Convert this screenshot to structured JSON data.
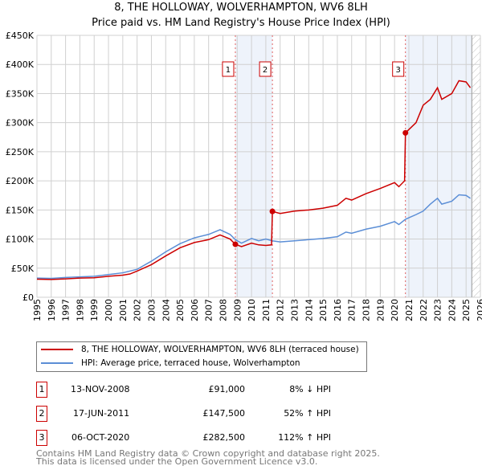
{
  "header": {
    "title": "8, THE HOLLOWAY, WOLVERHAMPTON, WV6 8LH",
    "subtitle": "Price paid vs. HM Land Registry's House Price Index (HPI)"
  },
  "chart_data": {
    "type": "line",
    "title": "8, THE HOLLOWAY, WOLVERHAMPTON, WV6 8LH",
    "subtitle": "Price paid vs. HM Land Registry's House Price Index (HPI)",
    "xlim": [
      1995,
      2026
    ],
    "ylim": [
      0,
      450000
    ],
    "x_ticks": [
      "1995",
      "1996",
      "1997",
      "1998",
      "1999",
      "2000",
      "2001",
      "2002",
      "2003",
      "2004",
      "2005",
      "2006",
      "2007",
      "2008",
      "2009",
      "2010",
      "2011",
      "2012",
      "2013",
      "2014",
      "2015",
      "2016",
      "2017",
      "2018",
      "2019",
      "2020",
      "2021",
      "2022",
      "2023",
      "2024",
      "2025",
      "2026"
    ],
    "y_ticks": [
      {
        "v": 0,
        "label": "£0"
      },
      {
        "v": 50000,
        "label": "£50K"
      },
      {
        "v": 100000,
        "label": "£100K"
      },
      {
        "v": 150000,
        "label": "£150K"
      },
      {
        "v": 200000,
        "label": "£200K"
      },
      {
        "v": 250000,
        "label": "£250K"
      },
      {
        "v": 300000,
        "label": "£300K"
      },
      {
        "v": 350000,
        "label": "£350K"
      },
      {
        "v": 400000,
        "label": "£400K"
      },
      {
        "v": 450000,
        "label": "£450K"
      }
    ],
    "grid": true,
    "shaded_ranges": [
      [
        2008.87,
        2011.46
      ],
      [
        2020.76,
        2025.4
      ]
    ],
    "hatched_from": 2025.4,
    "series": [
      {
        "name": "8, THE HOLLOWAY, WOLVERHAMPTON, WV6 8LH (terraced house)",
        "color": "#cc0000",
        "points": [
          [
            1995,
            31000
          ],
          [
            1996,
            30500
          ],
          [
            1997,
            31500
          ],
          [
            1998,
            33000
          ],
          [
            1999,
            33500
          ],
          [
            2000,
            36000
          ],
          [
            2001,
            38000
          ],
          [
            2001.5,
            40000
          ],
          [
            2002,
            45000
          ],
          [
            2003,
            56000
          ],
          [
            2004,
            71000
          ],
          [
            2005,
            85000
          ],
          [
            2006,
            94000
          ],
          [
            2007,
            99000
          ],
          [
            2007.8,
            107000
          ],
          [
            2008.5,
            100000
          ],
          [
            2008.87,
            91000
          ],
          [
            2009.3,
            87000
          ],
          [
            2010,
            93000
          ],
          [
            2010.5,
            90000
          ],
          [
            2011,
            89000
          ],
          [
            2011.4,
            90000
          ],
          [
            2011.46,
            147500
          ],
          [
            2012,
            144000
          ],
          [
            2013,
            148000
          ],
          [
            2014,
            150000
          ],
          [
            2015,
            153000
          ],
          [
            2016,
            158000
          ],
          [
            2016.6,
            170000
          ],
          [
            2017,
            167000
          ],
          [
            2018,
            178000
          ],
          [
            2019,
            187000
          ],
          [
            2020,
            197000
          ],
          [
            2020.3,
            190000
          ],
          [
            2020.7,
            200000
          ],
          [
            2020.76,
            282500
          ],
          [
            2021.5,
            300000
          ],
          [
            2022,
            330000
          ],
          [
            2022.5,
            340000
          ],
          [
            2023,
            360000
          ],
          [
            2023.3,
            340000
          ],
          [
            2024,
            350000
          ],
          [
            2024.5,
            372000
          ],
          [
            2025,
            370000
          ],
          [
            2025.3,
            360000
          ]
        ]
      },
      {
        "name": "HPI: Average price, terraced house, Wolverhampton",
        "color": "#5b8ed6",
        "points": [
          [
            1995,
            33000
          ],
          [
            1996,
            32500
          ],
          [
            1997,
            34000
          ],
          [
            1998,
            35000
          ],
          [
            1999,
            36000
          ],
          [
            2000,
            39000
          ],
          [
            2001,
            42000
          ],
          [
            2002,
            48000
          ],
          [
            2003,
            62000
          ],
          [
            2004,
            78000
          ],
          [
            2005,
            92000
          ],
          [
            2006,
            102000
          ],
          [
            2007,
            108000
          ],
          [
            2007.8,
            116000
          ],
          [
            2008.5,
            108000
          ],
          [
            2008.87,
            99000
          ],
          [
            2009.3,
            93000
          ],
          [
            2010,
            101000
          ],
          [
            2010.5,
            97000
          ],
          [
            2011,
            100000
          ],
          [
            2011.46,
            97000
          ],
          [
            2012,
            95000
          ],
          [
            2013,
            97000
          ],
          [
            2014,
            99000
          ],
          [
            2015,
            101000
          ],
          [
            2016,
            104000
          ],
          [
            2016.6,
            112000
          ],
          [
            2017,
            110000
          ],
          [
            2018,
            117000
          ],
          [
            2019,
            122000
          ],
          [
            2020,
            130000
          ],
          [
            2020.3,
            125000
          ],
          [
            2020.76,
            134000
          ],
          [
            2021.5,
            142000
          ],
          [
            2022,
            148000
          ],
          [
            2022.5,
            160000
          ],
          [
            2023,
            170000
          ],
          [
            2023.3,
            160000
          ],
          [
            2024,
            165000
          ],
          [
            2024.5,
            176000
          ],
          [
            2025,
            175000
          ],
          [
            2025.3,
            170000
          ]
        ]
      }
    ],
    "sales": [
      {
        "id": "1",
        "x": 2008.87,
        "y": 91000
      },
      {
        "id": "2",
        "x": 2011.46,
        "y": 147500
      },
      {
        "id": "3",
        "x": 2020.76,
        "y": 282500
      }
    ],
    "legend_placement": "bottom"
  },
  "legend": {
    "items": [
      {
        "label": "8, THE HOLLOWAY, WOLVERHAMPTON, WV6 8LH (terraced house)",
        "color": "#cc0000"
      },
      {
        "label": "HPI: Average price, terraced house, Wolverhampton",
        "color": "#5b8ed6"
      }
    ]
  },
  "transactions": [
    {
      "id": "1",
      "date": "13-NOV-2008",
      "price": "£91,000",
      "hpi": "8% ↓ HPI"
    },
    {
      "id": "2",
      "date": "17-JUN-2011",
      "price": "£147,500",
      "hpi": "52% ↑ HPI"
    },
    {
      "id": "3",
      "date": "06-OCT-2020",
      "price": "£282,500",
      "hpi": "112% ↑ HPI"
    }
  ],
  "footer": {
    "line1": "Contains HM Land Registry data © Crown copyright and database right 2025.",
    "line2": "This data is licensed under the Open Government Licence v3.0."
  }
}
